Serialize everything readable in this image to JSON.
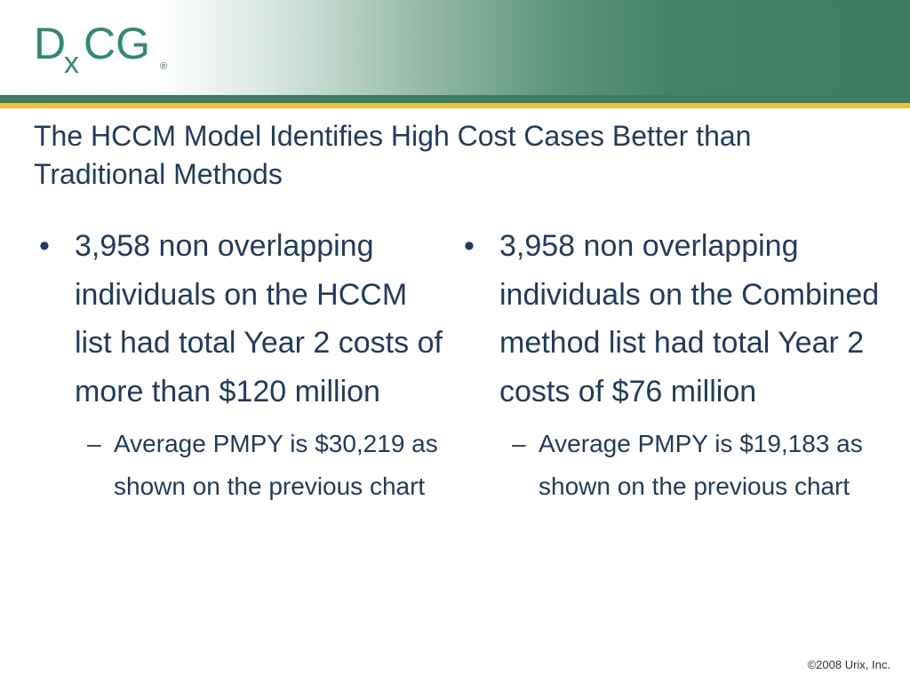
{
  "logo": {
    "letter_d": "D",
    "letter_x": "x",
    "letters_cg": "CG",
    "registered": "®",
    "color": "#2e8b73",
    "registered_color": "#3a6a58"
  },
  "slide": {
    "title_line1": "The HCCM Model Identifies High Cost Cases Better than",
    "title_line2": "Traditional Methods",
    "left": {
      "bullet_symbol": "•",
      "bullet_text": "3,958 non overlapping individuals on the HCCM list had total Year 2 costs of more than $120 million",
      "sub_symbol": "–",
      "sub_text": "Average PMPY is $30,219 as shown on the previous chart"
    },
    "right": {
      "bullet_symbol": "•",
      "bullet_text": "3,958 non overlapping individuals on the Combined method list had total Year 2 costs of $76 million",
      "sub_symbol": "–",
      "sub_text": "Average PMPY is $19,183 as shown on the previous chart"
    },
    "footer": {
      "copyright": "©2008 Urix, Inc."
    }
  },
  "colors": {
    "title": "#1f3b5f",
    "band_green": "#3f7d62",
    "band_gold": "#f3c23b"
  }
}
